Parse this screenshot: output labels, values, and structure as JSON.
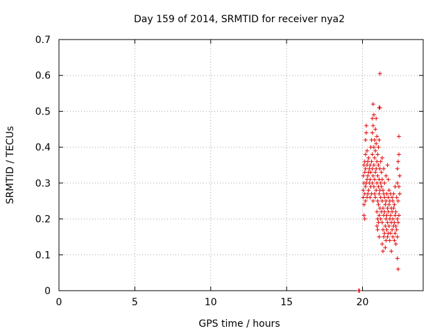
{
  "chart_data": {
    "type": "scatter",
    "title": "Day 159 of 2014, SRMTID for receiver nya2",
    "xlabel": "GPS time / hours",
    "ylabel": "SRMTID / TECUs",
    "xlim": [
      0,
      24
    ],
    "ylim": [
      0,
      0.7
    ],
    "x_ticks": [
      0,
      5,
      10,
      15,
      20
    ],
    "y_ticks": [
      0,
      0.1,
      0.2,
      0.3,
      0.4,
      0.5,
      0.6,
      0.7
    ],
    "x_tick_labels": [
      "0",
      "5",
      "10",
      "15",
      "20"
    ],
    "y_tick_labels": [
      "0",
      "0.1",
      "0.2",
      "0.3",
      "0.4",
      "0.5",
      "0.6",
      "0.7"
    ],
    "grid": true,
    "marker": "+",
    "marker_color": "#e00000",
    "series": [
      {
        "points": [
          [
            19.75,
            0.0
          ],
          [
            19.8,
            0.0
          ],
          [
            20.05,
            0.26
          ],
          [
            20.05,
            0.28
          ],
          [
            20.05,
            0.32
          ],
          [
            20.1,
            0.21
          ],
          [
            20.1,
            0.24
          ],
          [
            20.1,
            0.3
          ],
          [
            20.1,
            0.35
          ],
          [
            20.15,
            0.2
          ],
          [
            20.15,
            0.27
          ],
          [
            20.15,
            0.33
          ],
          [
            20.15,
            0.36
          ],
          [
            20.2,
            0.25
          ],
          [
            20.2,
            0.29
          ],
          [
            20.2,
            0.34
          ],
          [
            20.2,
            0.38
          ],
          [
            20.2,
            0.42
          ],
          [
            20.25,
            0.3
          ],
          [
            20.25,
            0.44
          ],
          [
            20.25,
            0.46
          ],
          [
            20.3,
            0.26
          ],
          [
            20.3,
            0.31
          ],
          [
            20.3,
            0.35
          ],
          [
            20.3,
            0.39
          ],
          [
            20.35,
            0.27
          ],
          [
            20.35,
            0.32
          ],
          [
            20.35,
            0.36
          ],
          [
            20.4,
            0.28
          ],
          [
            20.4,
            0.33
          ],
          [
            20.4,
            0.37
          ],
          [
            20.45,
            0.3
          ],
          [
            20.45,
            0.34
          ],
          [
            20.5,
            0.26
          ],
          [
            20.5,
            0.31
          ],
          [
            20.5,
            0.35
          ],
          [
            20.55,
            0.29
          ],
          [
            20.55,
            0.33
          ],
          [
            20.55,
            0.4
          ],
          [
            20.6,
            0.27
          ],
          [
            20.6,
            0.36
          ],
          [
            20.6,
            0.42
          ],
          [
            20.65,
            0.3
          ],
          [
            20.65,
            0.34
          ],
          [
            20.65,
            0.38
          ],
          [
            20.65,
            0.44
          ],
          [
            20.65,
            0.48
          ],
          [
            20.7,
            0.25
          ],
          [
            20.7,
            0.32
          ],
          [
            20.7,
            0.46
          ],
          [
            20.7,
            0.52
          ],
          [
            20.75,
            0.29
          ],
          [
            20.75,
            0.35
          ],
          [
            20.75,
            0.4
          ],
          [
            20.75,
            0.49
          ],
          [
            20.8,
            0.27
          ],
          [
            20.8,
            0.31
          ],
          [
            20.8,
            0.37
          ],
          [
            20.8,
            0.42
          ],
          [
            20.85,
            0.26
          ],
          [
            20.85,
            0.33
          ],
          [
            20.85,
            0.39
          ],
          [
            20.85,
            0.45
          ],
          [
            20.9,
            0.28
          ],
          [
            20.9,
            0.34
          ],
          [
            20.9,
            0.41
          ],
          [
            20.9,
            0.48
          ],
          [
            20.95,
            0.18
          ],
          [
            20.95,
            0.22
          ],
          [
            20.95,
            0.3
          ],
          [
            20.95,
            0.36
          ],
          [
            20.95,
            0.43
          ],
          [
            21.0,
            0.17
          ],
          [
            21.0,
            0.2
          ],
          [
            21.0,
            0.25
          ],
          [
            21.0,
            0.32
          ],
          [
            21.0,
            0.38
          ],
          [
            21.05,
            0.19
          ],
          [
            21.05,
            0.24
          ],
          [
            21.05,
            0.29
          ],
          [
            21.05,
            0.35
          ],
          [
            21.05,
            0.4
          ],
          [
            21.1,
            0.15
          ],
          [
            21.1,
            0.21
          ],
          [
            21.1,
            0.27
          ],
          [
            21.1,
            0.31
          ],
          [
            21.1,
            0.42
          ],
          [
            21.1,
            0.51
          ],
          [
            21.15,
            0.23
          ],
          [
            21.15,
            0.28
          ],
          [
            21.15,
            0.34
          ],
          [
            21.15,
            0.605
          ],
          [
            21.15,
            0.51
          ],
          [
            21.2,
            0.2
          ],
          [
            21.2,
            0.26
          ],
          [
            21.2,
            0.3
          ],
          [
            21.2,
            0.36
          ],
          [
            21.25,
            0.22
          ],
          [
            21.25,
            0.29
          ],
          [
            21.25,
            0.33
          ],
          [
            21.3,
            0.13
          ],
          [
            21.3,
            0.19
          ],
          [
            21.3,
            0.25
          ],
          [
            21.3,
            0.31
          ],
          [
            21.3,
            0.37
          ],
          [
            21.35,
            0.11
          ],
          [
            21.35,
            0.17
          ],
          [
            21.35,
            0.23
          ],
          [
            21.35,
            0.28
          ],
          [
            21.4,
            0.15
          ],
          [
            21.4,
            0.21
          ],
          [
            21.4,
            0.27
          ],
          [
            21.4,
            0.34
          ],
          [
            21.45,
            0.16
          ],
          [
            21.45,
            0.22
          ],
          [
            21.45,
            0.26
          ],
          [
            21.45,
            0.3
          ],
          [
            21.5,
            0.12
          ],
          [
            21.5,
            0.18
          ],
          [
            21.5,
            0.24
          ],
          [
            21.55,
            0.14
          ],
          [
            21.55,
            0.2
          ],
          [
            21.55,
            0.25
          ],
          [
            21.55,
            0.32
          ],
          [
            21.6,
            0.17
          ],
          [
            21.6,
            0.21
          ],
          [
            21.6,
            0.27
          ],
          [
            21.65,
            0.15
          ],
          [
            21.65,
            0.19
          ],
          [
            21.65,
            0.23
          ],
          [
            21.65,
            0.35
          ],
          [
            21.7,
            0.16
          ],
          [
            21.7,
            0.22
          ],
          [
            21.7,
            0.26
          ],
          [
            21.7,
            0.31
          ],
          [
            21.75,
            0.18
          ],
          [
            21.75,
            0.24
          ],
          [
            21.75,
            0.28
          ],
          [
            21.8,
            0.14
          ],
          [
            21.8,
            0.2
          ],
          [
            21.8,
            0.25
          ],
          [
            21.85,
            0.16
          ],
          [
            21.85,
            0.21
          ],
          [
            21.85,
            0.27
          ],
          [
            21.9,
            0.11
          ],
          [
            21.9,
            0.19
          ],
          [
            21.9,
            0.23
          ],
          [
            21.95,
            0.17
          ],
          [
            21.95,
            0.22
          ],
          [
            21.95,
            0.26
          ],
          [
            22.0,
            0.15
          ],
          [
            22.0,
            0.2
          ],
          [
            22.0,
            0.25
          ],
          [
            22.05,
            0.18
          ],
          [
            22.05,
            0.23
          ],
          [
            22.05,
            0.27
          ],
          [
            22.1,
            0.14
          ],
          [
            22.1,
            0.19
          ],
          [
            22.1,
            0.24
          ],
          [
            22.15,
            0.16
          ],
          [
            22.15,
            0.21
          ],
          [
            22.15,
            0.29
          ],
          [
            22.2,
            0.13
          ],
          [
            22.2,
            0.18
          ],
          [
            22.2,
            0.22
          ],
          [
            22.25,
            0.17
          ],
          [
            22.25,
            0.26
          ],
          [
            22.3,
            0.09
          ],
          [
            22.3,
            0.15
          ],
          [
            22.3,
            0.2
          ],
          [
            22.3,
            0.3
          ],
          [
            22.3,
            0.34
          ],
          [
            22.35,
            0.06
          ],
          [
            22.35,
            0.19
          ],
          [
            22.35,
            0.25
          ],
          [
            22.35,
            0.36
          ],
          [
            22.4,
            0.21
          ],
          [
            22.4,
            0.29
          ],
          [
            22.4,
            0.38
          ],
          [
            22.4,
            0.43
          ],
          [
            22.45,
            0.27
          ],
          [
            22.45,
            0.32
          ]
        ]
      }
    ]
  }
}
